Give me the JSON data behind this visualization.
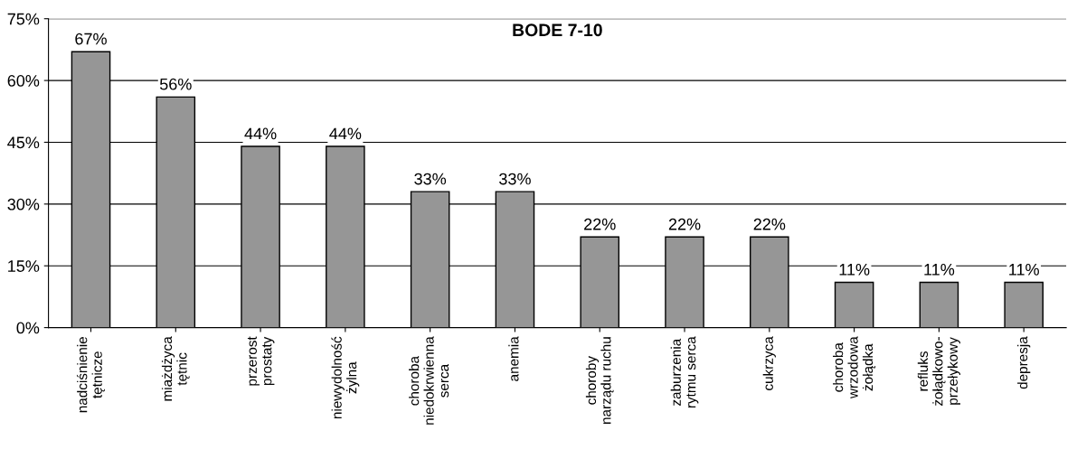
{
  "chart_data": {
    "type": "bar",
    "title": "BODE 7-10",
    "categories": [
      "nadciśnienie\ntętnicze",
      "miażdżyca\ntętnic",
      "przerost\nprostaty",
      "niewydolność\nżylna",
      "choroba\nniedokrwienna\nserca",
      "anemia",
      "choroby\nnarządu ruchu",
      "zaburzenia\nrytmu serca",
      "cukrzyca",
      "choroba\nwrzodowa\nżołądka",
      "refluks\nżołądkowo-\nprzełykowy",
      "depresja"
    ],
    "values": [
      67,
      56,
      44,
      44,
      33,
      33,
      22,
      22,
      22,
      11,
      11,
      11
    ],
    "value_labels": [
      "67%",
      "56%",
      "44%",
      "44%",
      "33%",
      "33%",
      "22%",
      "22%",
      "22%",
      "11%",
      "11%",
      "11%"
    ],
    "color": "#969696",
    "ylim": [
      0,
      75
    ],
    "yticks": [
      {
        "value": 0,
        "label": "0%"
      },
      {
        "value": 15,
        "label": "15%"
      },
      {
        "value": 30,
        "label": "30%"
      },
      {
        "value": 45,
        "label": "45%"
      },
      {
        "value": 60,
        "label": "60%"
      },
      {
        "value": 75,
        "label": "75%"
      }
    ],
    "grid": "y"
  }
}
